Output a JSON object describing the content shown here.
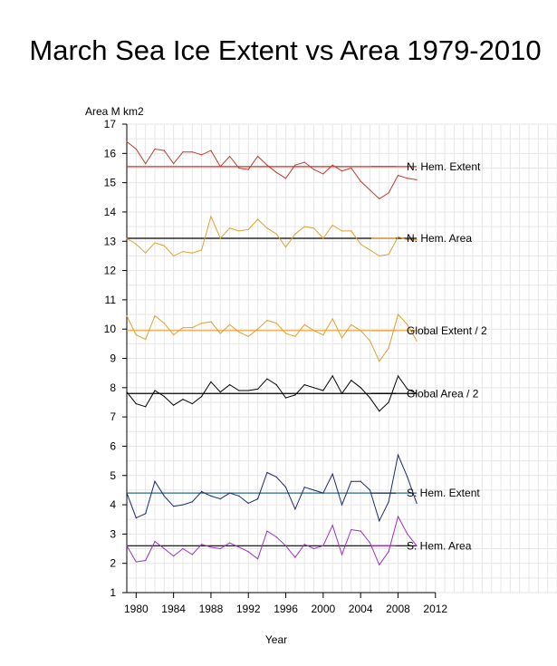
{
  "title": "March Sea Ice Extent vs Area 1979-2010",
  "chart_data": {
    "type": "line",
    "title": "March Sea Ice Extent vs Area 1979-2010",
    "xlabel": "Year",
    "ylabel": "Area M km2",
    "xlim": [
      1979,
      2025
    ],
    "ylim": [
      1,
      17
    ],
    "x_ticks": [
      1980,
      1984,
      1988,
      1992,
      1996,
      2000,
      2004,
      2008,
      2012
    ],
    "y_ticks": [
      1,
      2,
      3,
      4,
      5,
      6,
      7,
      8,
      9,
      10,
      11,
      12,
      13,
      14,
      15,
      16,
      17
    ],
    "grid": true,
    "x": [
      1979,
      1980,
      1981,
      1982,
      1983,
      1984,
      1985,
      1986,
      1987,
      1988,
      1989,
      1990,
      1991,
      1992,
      1993,
      1994,
      1995,
      1996,
      1997,
      1998,
      1999,
      2000,
      2001,
      2002,
      2003,
      2004,
      2005,
      2006,
      2007,
      2008,
      2009,
      2010
    ],
    "series": [
      {
        "name": "N. Hem. Extent",
        "color": "#c0392b",
        "mean_color": "#c0392b",
        "mean": 15.55,
        "values": [
          16.4,
          16.15,
          15.65,
          16.15,
          16.1,
          15.65,
          16.05,
          16.05,
          15.95,
          16.1,
          15.55,
          15.9,
          15.5,
          15.45,
          15.9,
          15.6,
          15.35,
          15.15,
          15.6,
          15.7,
          15.45,
          15.3,
          15.6,
          15.4,
          15.5,
          15.05,
          14.75,
          14.45,
          14.65,
          15.25,
          15.15,
          15.1
        ]
      },
      {
        "name": "N. Hem. Area",
        "color": "#e0a030",
        "mean_color": "#000000",
        "mean": 13.1,
        "values": [
          13.1,
          12.9,
          12.6,
          12.95,
          12.85,
          12.5,
          12.65,
          12.6,
          12.7,
          13.85,
          13.1,
          13.45,
          13.35,
          13.4,
          13.75,
          13.45,
          13.25,
          12.8,
          13.25,
          13.5,
          13.45,
          13.1,
          13.55,
          13.35,
          13.35,
          12.9,
          12.7,
          12.5,
          12.55,
          13.15,
          13.05,
          13.05
        ]
      },
      {
        "name": "Global Extent / 2",
        "color": "#e0a030",
        "mean_color": "#e0a030",
        "mean": 9.95,
        "values": [
          10.45,
          9.8,
          9.65,
          10.45,
          10.2,
          9.8,
          10.05,
          10.05,
          10.2,
          10.25,
          9.85,
          10.15,
          9.9,
          9.75,
          10.0,
          10.3,
          10.2,
          9.85,
          9.75,
          10.15,
          9.95,
          9.8,
          10.35,
          9.7,
          10.15,
          9.95,
          9.6,
          8.9,
          9.35,
          10.5,
          10.15,
          9.6
        ]
      },
      {
        "name": "Global Area / 2",
        "color": "#000000",
        "mean_color": "#000000",
        "mean": 7.8,
        "values": [
          7.85,
          7.45,
          7.35,
          7.9,
          7.7,
          7.4,
          7.6,
          7.45,
          7.7,
          8.2,
          7.85,
          8.1,
          7.9,
          7.9,
          7.95,
          8.3,
          8.1,
          7.65,
          7.75,
          8.1,
          8.0,
          7.9,
          8.4,
          7.8,
          8.25,
          8.0,
          7.65,
          7.2,
          7.5,
          8.4,
          7.95,
          7.8
        ]
      },
      {
        "name": "S. Hem. Extent",
        "color": "#1a2a6c",
        "mean_color": "#2a6a8a",
        "mean": 4.4,
        "values": [
          4.4,
          3.55,
          3.7,
          4.8,
          4.3,
          3.95,
          4.0,
          4.1,
          4.45,
          4.3,
          4.2,
          4.4,
          4.3,
          4.05,
          4.2,
          5.1,
          4.95,
          4.6,
          3.85,
          4.6,
          4.5,
          4.4,
          5.05,
          4.0,
          4.8,
          4.8,
          4.5,
          3.45,
          4.1,
          5.7,
          4.95,
          4.05
        ]
      },
      {
        "name": "S. Hem. Area",
        "color": "#9b30c0",
        "mean_color": "#000000",
        "mean": 2.6,
        "values": [
          2.6,
          2.05,
          2.1,
          2.75,
          2.5,
          2.25,
          2.5,
          2.3,
          2.65,
          2.55,
          2.5,
          2.7,
          2.55,
          2.4,
          2.15,
          3.1,
          2.9,
          2.6,
          2.2,
          2.65,
          2.5,
          2.6,
          3.3,
          2.3,
          3.15,
          3.1,
          2.7,
          1.95,
          2.4,
          3.6,
          3.0,
          2.6
        ]
      }
    ]
  }
}
